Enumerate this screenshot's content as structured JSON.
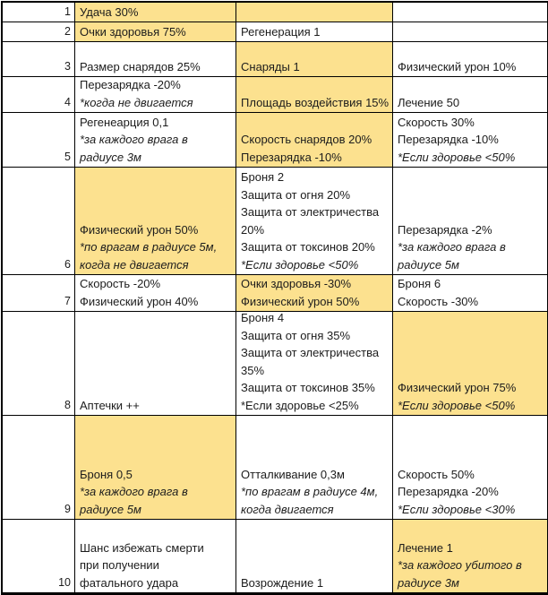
{
  "colors": {
    "highlight": "#fce18f",
    "cell_background": "#ffffff",
    "grid_line": "#000000",
    "text": "#1c1c1c"
  },
  "table": {
    "rows": [
      {
        "number": "1",
        "cells": [
          {
            "fill": "highlight",
            "lines": [
              {
                "text": "Удача 30%",
                "italic": false
              }
            ]
          },
          {
            "fill": "highlight",
            "lines": []
          },
          {
            "fill": "none",
            "lines": []
          }
        ]
      },
      {
        "number": "2",
        "cells": [
          {
            "fill": "highlight",
            "lines": [
              {
                "text": "Очки здоровья 75%",
                "italic": false
              }
            ]
          },
          {
            "fill": "none",
            "lines": [
              {
                "text": "Регенерация 1",
                "italic": false
              }
            ]
          },
          {
            "fill": "none",
            "lines": []
          }
        ]
      },
      {
        "number": "3",
        "cells": [
          {
            "fill": "none",
            "lines": [
              {
                "text": "Размер снарядов 25%",
                "italic": false
              }
            ]
          },
          {
            "fill": "highlight",
            "lines": [
              {
                "text": "Снаряды 1",
                "italic": false
              }
            ]
          },
          {
            "fill": "none",
            "lines": [
              {
                "text": "Физический урон 10%",
                "italic": false
              }
            ]
          }
        ]
      },
      {
        "number": "4",
        "cells": [
          {
            "fill": "none",
            "lines": [
              {
                "text": "Перезарядка -20%",
                "italic": false
              },
              {
                "text": "*когда не двигается",
                "italic": true
              }
            ]
          },
          {
            "fill": "highlight",
            "lines": [
              {
                "text": "Площадь воздействия 15%",
                "italic": false
              }
            ]
          },
          {
            "fill": "none",
            "lines": [
              {
                "text": "Лечение 50",
                "italic": false
              }
            ]
          }
        ]
      },
      {
        "number": "5",
        "cells": [
          {
            "fill": "none",
            "lines": [
              {
                "text": "Регенеарция 0,1",
                "italic": false
              },
              {
                "text": "*за каждого врага в",
                "italic": true
              },
              {
                "text": "радиусе 3м",
                "italic": true
              }
            ]
          },
          {
            "fill": "highlight",
            "lines": [
              {
                "text": "Скорость снарядов 20%",
                "italic": false
              },
              {
                "text": "Перезарядка -10%",
                "italic": false
              }
            ]
          },
          {
            "fill": "none",
            "lines": [
              {
                "text": "Скорость 30%",
                "italic": false
              },
              {
                "text": "Перезарядка -10%",
                "italic": false
              },
              {
                "text": "*Если здоровье <50%",
                "italic": true
              }
            ]
          }
        ]
      },
      {
        "number": "6",
        "cells": [
          {
            "fill": "highlight",
            "lines": [
              {
                "text": "Физический урон 50%",
                "italic": false
              },
              {
                "text": "*по врагам в радиусе 5м,",
                "italic": true
              },
              {
                "text": "когда не двигается",
                "italic": true
              }
            ]
          },
          {
            "fill": "none",
            "lines": [
              {
                "text": "Броня 2",
                "italic": false
              },
              {
                "text": "Защита от огня 20%",
                "italic": false
              },
              {
                "text": "Защита от электричества",
                "italic": false
              },
              {
                "text": "20%",
                "italic": false
              },
              {
                "text": "Защита от токсинов 20%",
                "italic": false
              },
              {
                "text": "*Если здоровье <50%",
                "italic": true
              }
            ]
          },
          {
            "fill": "none",
            "lines": [
              {
                "text": "Перезарядка -2%",
                "italic": false
              },
              {
                "text": "*за каждого врага в",
                "italic": true
              },
              {
                "text": "радиусе 5м",
                "italic": true
              }
            ]
          }
        ]
      },
      {
        "number": "7",
        "cells": [
          {
            "fill": "none",
            "lines": [
              {
                "text": "Скорость -20%",
                "italic": false
              },
              {
                "text": "Физический урон 40%",
                "italic": false
              }
            ]
          },
          {
            "fill": "highlight",
            "lines": [
              {
                "text": "Очки здоровья -30%",
                "italic": false
              },
              {
                "text": "Физический урон 50%",
                "italic": false
              }
            ]
          },
          {
            "fill": "none",
            "lines": [
              {
                "text": "Броня 6",
                "italic": false
              },
              {
                "text": "Скорость -30%",
                "italic": false
              }
            ]
          }
        ]
      },
      {
        "number": "8",
        "cells": [
          {
            "fill": "none",
            "lines": [
              {
                "text": "Аптечки ++",
                "italic": false
              }
            ]
          },
          {
            "fill": "none",
            "lines": [
              {
                "text": "Броня 4",
                "italic": false
              },
              {
                "text": "Защита от огня 35%",
                "italic": false
              },
              {
                "text": "Защита от электричества",
                "italic": false
              },
              {
                "text": "35%",
                "italic": false
              },
              {
                "text": "Защита от токсинов 35%",
                "italic": false
              },
              {
                "text": "*Если здоровье <25%",
                "italic": false
              }
            ]
          },
          {
            "fill": "highlight",
            "lines": [
              {
                "text": "Физический урон 75%",
                "italic": false
              },
              {
                "text": "*Если здоровье <50%",
                "italic": true
              }
            ]
          }
        ]
      },
      {
        "number": "9",
        "cells": [
          {
            "fill": "highlight",
            "lines": [
              {
                "text": "Броня 0,5",
                "italic": false
              },
              {
                "text": "*за каждого врага в",
                "italic": true
              },
              {
                "text": "радиусе 5м",
                "italic": true
              }
            ]
          },
          {
            "fill": "none",
            "lines": [
              {
                "text": "Отталкивание 0,3м",
                "italic": false
              },
              {
                "text": "*по врагам в радиусе 4м,",
                "italic": true
              },
              {
                "text": "когда двигается",
                "italic": true
              }
            ]
          },
          {
            "fill": "none",
            "lines": [
              {
                "text": "Скорость 50%",
                "italic": false
              },
              {
                "text": "Перезарядка -20%",
                "italic": false
              },
              {
                "text": "*Если здоровье <30%",
                "italic": true
              }
            ]
          }
        ]
      },
      {
        "number": "10",
        "cells": [
          {
            "fill": "none",
            "lines": [
              {
                "text": "Шанс избежать смерти",
                "italic": false
              },
              {
                "text": "при получении",
                "italic": false
              },
              {
                "text": "фатального удара",
                "italic": false
              }
            ]
          },
          {
            "fill": "none",
            "lines": [
              {
                "text": "Возрождение 1",
                "italic": false
              }
            ]
          },
          {
            "fill": "highlight",
            "lines": [
              {
                "text": "Лечение 1",
                "italic": false
              },
              {
                "text": "*за каждого убитого в",
                "italic": true
              },
              {
                "text": "радиусе 3м",
                "italic": true
              }
            ]
          }
        ]
      }
    ]
  }
}
